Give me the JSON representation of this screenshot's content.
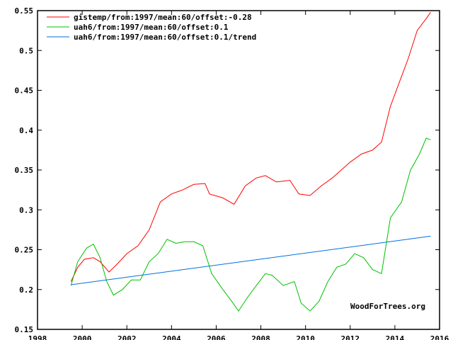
{
  "chart_data": {
    "type": "line",
    "title": "",
    "xlabel": "",
    "ylabel": "",
    "xlim": [
      1998,
      2016
    ],
    "ylim": [
      0.15,
      0.55
    ],
    "x_ticks": [
      "1998",
      "2000",
      "2002",
      "2004",
      "2006",
      "2008",
      "2010",
      "2012",
      "2014",
      "2016"
    ],
    "y_ticks": [
      "0.15",
      "0.2",
      "0.25",
      "0.3",
      "0.35",
      "0.4",
      "0.45",
      "0.5",
      "0.55"
    ],
    "grid": false,
    "legend_position": "top-left",
    "watermark": "WoodForTrees.org",
    "series": [
      {
        "name": "gistemp/from:1997/mean:60/offset:-0.28",
        "color": "#ff0000",
        "x": [
          1999.5,
          1999.8,
          2000.1,
          2000.5,
          2000.8,
          2001.2,
          2001.5,
          2002,
          2002.5,
          2003,
          2003.5,
          2004,
          2004.5,
          2005,
          2005.5,
          2005.7,
          2006.3,
          2006.8,
          2007.3,
          2007.8,
          2008.2,
          2008.7,
          2009.3,
          2009.7,
          2010.2,
          2010.7,
          2011.2,
          2012,
          2012.5,
          2013,
          2013.4,
          2013.8,
          2014.2,
          2014.6,
          2015,
          2015.4,
          2015.6
        ],
        "y": [
          0.21,
          0.228,
          0.238,
          0.24,
          0.235,
          0.222,
          0.23,
          0.245,
          0.255,
          0.275,
          0.31,
          0.32,
          0.325,
          0.332,
          0.333,
          0.32,
          0.315,
          0.307,
          0.33,
          0.34,
          0.343,
          0.335,
          0.337,
          0.32,
          0.318,
          0.33,
          0.34,
          0.36,
          0.37,
          0.375,
          0.385,
          0.43,
          0.46,
          0.49,
          0.525,
          0.54,
          0.548
        ]
      },
      {
        "name": "uah6/from:1997/mean:60/offset:0.1",
        "color": "#00c000",
        "x": [
          1999.5,
          1999.8,
          2000.2,
          2000.5,
          2000.8,
          2001.1,
          2001.4,
          2001.8,
          2002.2,
          2002.6,
          2003,
          2003.4,
          2003.8,
          2004.2,
          2004.6,
          2005,
          2005.4,
          2005.8,
          2006.3,
          2006.7,
          2007,
          2007.4,
          2007.8,
          2008.2,
          2008.5,
          2009,
          2009.5,
          2009.8,
          2010.2,
          2010.6,
          2011,
          2011.4,
          2011.8,
          2012.2,
          2012.6,
          2013,
          2013.4,
          2013.8,
          2014.3,
          2014.7,
          2015.1,
          2015.4,
          2015.6
        ],
        "y": [
          0.205,
          0.235,
          0.252,
          0.257,
          0.24,
          0.21,
          0.193,
          0.2,
          0.212,
          0.212,
          0.235,
          0.245,
          0.263,
          0.258,
          0.26,
          0.26,
          0.255,
          0.22,
          0.2,
          0.185,
          0.173,
          0.19,
          0.205,
          0.22,
          0.218,
          0.205,
          0.21,
          0.183,
          0.173,
          0.185,
          0.21,
          0.228,
          0.232,
          0.245,
          0.24,
          0.225,
          0.22,
          0.29,
          0.31,
          0.35,
          0.37,
          0.39,
          0.388
        ]
      },
      {
        "name": "uah6/from:1997/mean:60/offset:0.1/trend",
        "color": "#0070e0",
        "x": [
          1999.5,
          2015.6
        ],
        "y": [
          0.206,
          0.267
        ]
      }
    ]
  }
}
